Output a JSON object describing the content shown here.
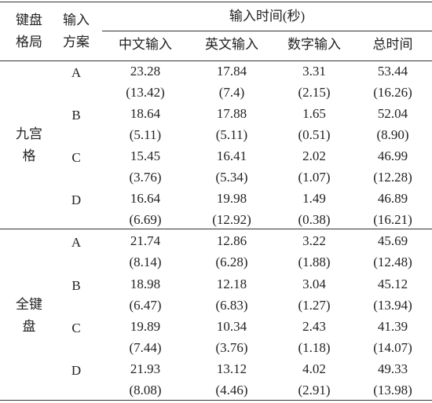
{
  "table": {
    "header": {
      "layout": "键盘格局",
      "scheme": "输入方案",
      "group": "输入时间(秒)",
      "columns": [
        "中文输入",
        "英文输入",
        "数字输入",
        "总时间"
      ]
    },
    "groups": [
      {
        "label": "九宫格",
        "rows": [
          {
            "scheme": "A",
            "values": [
              "23.28",
              "17.84",
              "3.31",
              "53.44"
            ],
            "sd": [
              "(13.42)",
              "(7.4)",
              "(2.15)",
              "(16.26)"
            ]
          },
          {
            "scheme": "B",
            "values": [
              "18.64",
              "17.88",
              "1.65",
              "52.04"
            ],
            "sd": [
              "(5.11)",
              "(5.11)",
              "(0.51)",
              "(8.90)"
            ]
          },
          {
            "scheme": "C",
            "values": [
              "15.45",
              "16.41",
              "2.02",
              "46.99"
            ],
            "sd": [
              "(3.76)",
              "(5.34)",
              "(1.07)",
              "(12.28)"
            ]
          },
          {
            "scheme": "D",
            "values": [
              "16.64",
              "19.98",
              "1.49",
              "46.89"
            ],
            "sd": [
              "(6.69)",
              "(12.92)",
              "(0.38)",
              "(16.21)"
            ]
          }
        ]
      },
      {
        "label": "全键盘",
        "rows": [
          {
            "scheme": "A",
            "values": [
              "21.74",
              "12.86",
              "3.22",
              "45.69"
            ],
            "sd": [
              "(8.14)",
              "(6.28)",
              "(1.88)",
              "(12.48)"
            ]
          },
          {
            "scheme": "B",
            "values": [
              "18.98",
              "12.18",
              "3.04",
              "45.12"
            ],
            "sd": [
              "(6.47)",
              "(6.83)",
              "(1.27)",
              "(13.94)"
            ]
          },
          {
            "scheme": "C",
            "values": [
              "19.89",
              "10.34",
              "2.43",
              "41.39"
            ],
            "sd": [
              "(7.44)",
              "(3.76)",
              "(1.18)",
              "(14.07)"
            ]
          },
          {
            "scheme": "D",
            "values": [
              "21.93",
              "13.12",
              "4.02",
              "49.33"
            ],
            "sd": [
              "(8.08)",
              "(4.46)",
              "(2.91)",
              "(13.98)"
            ]
          }
        ]
      }
    ]
  }
}
